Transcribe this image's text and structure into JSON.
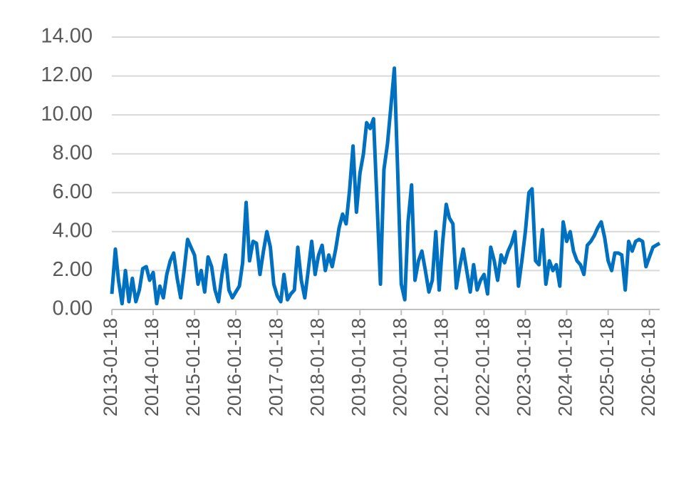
{
  "chart_data": {
    "type": "line",
    "color": "#0070c0",
    "grid": true,
    "xlim": [
      "2013-01-18",
      "2026-04-18"
    ],
    "xticks": [
      "2013-01-18",
      "2014-01-18",
      "2015-01-18",
      "2016-01-18",
      "2017-01-18",
      "2018-01-18",
      "2019-01-18",
      "2020-01-18",
      "2021-01-18",
      "2022-01-18",
      "2023-01-18",
      "2024-01-18",
      "2025-01-18",
      "2026-01-18"
    ],
    "ylim": [
      0,
      14
    ],
    "yticks": [
      {
        "value": 0,
        "label": "0.00"
      },
      {
        "value": 2,
        "label": "2.00"
      },
      {
        "value": 4,
        "label": "4.00"
      },
      {
        "value": 6,
        "label": "6.00"
      },
      {
        "value": 8,
        "label": "8.00"
      },
      {
        "value": 10,
        "label": "10.00"
      },
      {
        "value": 12,
        "label": "12.00"
      },
      {
        "value": 14,
        "label": "14.00"
      }
    ],
    "x": [
      "2013-01-18",
      "2013-02-18",
      "2013-03-18",
      "2013-04-18",
      "2013-05-18",
      "2013-06-18",
      "2013-07-18",
      "2013-08-18",
      "2013-09-18",
      "2013-10-18",
      "2013-11-18",
      "2013-12-18",
      "2014-01-18",
      "2014-02-18",
      "2014-03-18",
      "2014-04-18",
      "2014-05-18",
      "2014-06-18",
      "2014-07-18",
      "2014-08-18",
      "2014-09-18",
      "2014-10-18",
      "2014-11-18",
      "2014-12-18",
      "2015-01-18",
      "2015-02-18",
      "2015-03-18",
      "2015-04-18",
      "2015-05-18",
      "2015-06-18",
      "2015-07-18",
      "2015-08-18",
      "2015-09-18",
      "2015-10-18",
      "2015-11-18",
      "2015-12-18",
      "2016-01-18",
      "2016-02-18",
      "2016-03-18",
      "2016-04-18",
      "2016-05-18",
      "2016-06-18",
      "2016-07-18",
      "2016-08-18",
      "2016-09-18",
      "2016-10-18",
      "2016-11-18",
      "2016-12-18",
      "2017-01-18",
      "2017-02-18",
      "2017-03-18",
      "2017-04-18",
      "2017-05-18",
      "2017-06-18",
      "2017-07-18",
      "2017-08-18",
      "2017-09-18",
      "2017-10-18",
      "2017-11-18",
      "2017-12-18",
      "2018-01-18",
      "2018-02-18",
      "2018-03-18",
      "2018-04-18",
      "2018-05-18",
      "2018-06-18",
      "2018-07-18",
      "2018-08-18",
      "2018-09-18",
      "2018-10-18",
      "2018-11-18",
      "2018-12-18",
      "2019-01-18",
      "2019-02-18",
      "2019-03-18",
      "2019-04-18",
      "2019-05-18",
      "2019-06-18",
      "2019-07-18",
      "2019-08-18",
      "2019-09-18",
      "2019-10-18",
      "2019-11-18",
      "2019-12-18",
      "2020-01-18",
      "2020-02-18",
      "2020-03-18",
      "2020-04-18",
      "2020-05-18",
      "2020-06-18",
      "2020-07-18",
      "2020-08-18",
      "2020-09-18",
      "2020-10-18",
      "2020-11-18",
      "2020-12-18",
      "2021-01-18",
      "2021-02-18",
      "2021-03-18",
      "2021-04-18",
      "2021-05-18",
      "2021-06-18",
      "2021-07-18",
      "2021-08-18",
      "2021-09-18",
      "2021-10-18",
      "2021-11-18",
      "2021-12-18",
      "2022-01-18",
      "2022-02-18",
      "2022-03-18",
      "2022-04-18",
      "2022-05-18",
      "2022-06-18",
      "2022-07-18",
      "2022-08-18",
      "2022-09-18",
      "2022-10-18",
      "2022-11-18",
      "2022-12-18",
      "2023-01-18",
      "2023-02-18",
      "2023-03-18",
      "2023-04-18",
      "2023-05-18",
      "2023-06-18",
      "2023-07-18",
      "2023-08-18",
      "2023-09-18",
      "2023-10-18",
      "2023-11-18",
      "2023-12-18",
      "2024-01-18",
      "2024-02-18",
      "2024-03-18",
      "2024-04-18",
      "2024-05-18",
      "2024-06-18",
      "2024-07-18",
      "2024-08-18",
      "2024-09-18",
      "2024-10-18",
      "2024-11-18",
      "2024-12-18",
      "2025-01-18",
      "2025-02-18",
      "2025-03-18",
      "2025-04-18",
      "2025-05-18",
      "2025-06-18",
      "2025-07-18",
      "2025-08-18",
      "2025-09-18",
      "2025-10-18",
      "2025-11-18",
      "2025-12-18",
      "2026-01-18",
      "2026-02-18",
      "2026-03-18",
      "2026-04-18"
    ],
    "values": [
      0.8,
      3.1,
      1.5,
      0.3,
      2.0,
      0.4,
      1.6,
      0.4,
      1.0,
      2.1,
      2.2,
      1.5,
      1.9,
      0.3,
      1.2,
      0.6,
      1.8,
      2.5,
      2.9,
      1.6,
      0.6,
      2.0,
      3.6,
      3.2,
      2.8,
      1.3,
      2.0,
      0.9,
      2.7,
      2.2,
      1.0,
      0.4,
      1.8,
      2.8,
      1.0,
      0.6,
      0.9,
      1.2,
      2.4,
      5.5,
      2.5,
      3.5,
      3.4,
      1.8,
      3.0,
      4.0,
      3.2,
      1.3,
      0.7,
      0.4,
      1.8,
      0.5,
      0.8,
      1.0,
      3.2,
      1.5,
      0.6,
      2.0,
      3.5,
      1.8,
      2.8,
      3.3,
      2.0,
      2.8,
      2.2,
      3.1,
      4.2,
      4.9,
      4.4,
      6.1,
      8.4,
      5.0,
      7.0,
      8.0,
      9.6,
      9.3,
      9.8,
      5.5,
      1.3,
      7.2,
      8.5,
      10.4,
      12.4,
      7.0,
      1.3,
      0.5,
      4.5,
      6.4,
      1.5,
      2.5,
      3.0,
      2.0,
      0.9,
      1.5,
      4.0,
      1.0,
      3.5,
      5.4,
      4.7,
      4.4,
      1.1,
      2.2,
      3.1,
      2.0,
      0.9,
      2.3,
      1.0,
      1.5,
      1.8,
      0.8,
      3.2,
      2.5,
      1.5,
      2.8,
      2.4,
      3.0,
      3.4,
      4.0,
      1.2,
      2.5,
      4.0,
      6.0,
      6.2,
      2.5,
      2.3,
      4.1,
      1.3,
      2.5,
      2.0,
      2.3,
      1.2,
      4.5,
      3.5,
      4.0,
      3.0,
      2.5,
      2.3,
      1.8,
      3.3,
      3.5,
      3.8,
      4.2,
      4.5,
      3.7,
      2.5,
      2.0,
      2.9,
      2.9,
      2.8,
      1.0,
      3.5,
      3.0,
      3.5,
      3.6,
      3.5,
      2.2,
      2.7,
      3.2,
      3.3,
      3.4
    ]
  }
}
